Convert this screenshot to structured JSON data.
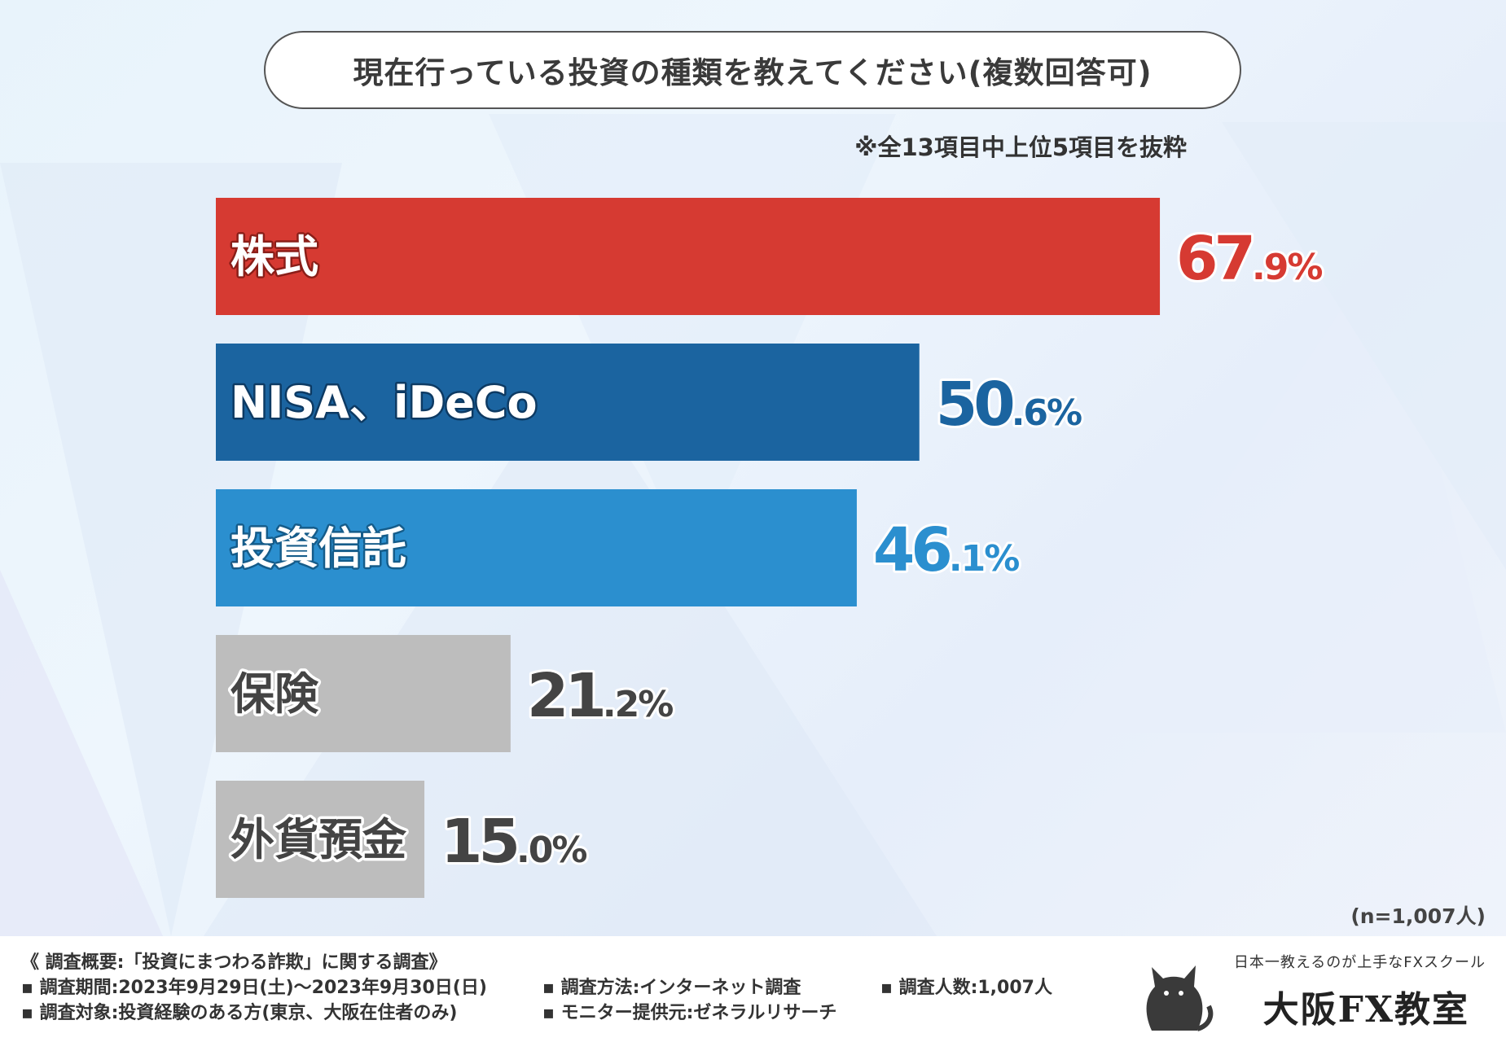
{
  "title": "現在行っている投資の種類を教えてください(複数回答可)",
  "note": "※全13項目中上位5項目を抜粋",
  "sample_size": "(n=1,007人)",
  "colors": {
    "bar_red": "#d63a32",
    "bar_dark_blue": "#1b64a0",
    "bar_blue": "#2b8fcf",
    "bar_gray": "#bdbdbd",
    "value_gray": "#444444"
  },
  "chart_data": {
    "type": "bar",
    "orientation": "horizontal",
    "title": "現在行っている投資の種類を教えてください(複数回答可)",
    "categories": [
      "株式",
      "NISA、iDeCo",
      "投資信託",
      "保険",
      "外貨預金"
    ],
    "values": [
      67.9,
      50.6,
      46.1,
      21.2,
      15.0
    ],
    "value_labels": [
      "67.9%",
      "50.6%",
      "46.1%",
      "21.2%",
      "15.0%"
    ],
    "unit": "%",
    "xlim": [
      0,
      100
    ],
    "grid": false,
    "legend": "none"
  },
  "footer": {
    "summary": "《 調査概要:「投資にまつわる詐欺」に関する調査》",
    "period": "▪ 調査期間:2023年9月29日(土)～2023年9月30日(日)",
    "method": "▪ 調査方法:インターネット調査",
    "count": "▪ 調査人数:1,007人",
    "target": "▪ 調査対象:投資経験のある方(東京、大阪在住者のみ)",
    "provider": "▪ モニター提供元:ゼネラルリサーチ"
  },
  "logo": {
    "tagline": "日本一教えるのが上手なFXスクール",
    "name": "大阪FX教室",
    "icon": "cat-icon"
  }
}
